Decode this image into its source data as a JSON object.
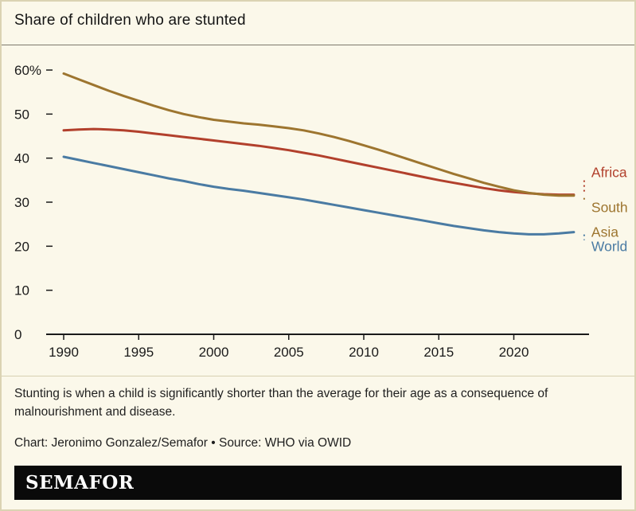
{
  "header": {
    "title": "Share of children who are stunted"
  },
  "chart_data": {
    "type": "line",
    "title": "Share of children who are stunted",
    "xlabel": "",
    "ylabel": "",
    "ylim": [
      0,
      62
    ],
    "grid": false,
    "legend_position": "right-end-labels",
    "x": [
      1990,
      1991,
      1992,
      1993,
      1994,
      1995,
      1996,
      1997,
      1998,
      1999,
      2000,
      2001,
      2002,
      2003,
      2004,
      2005,
      2006,
      2007,
      2008,
      2009,
      2010,
      2011,
      2012,
      2013,
      2014,
      2015,
      2016,
      2017,
      2018,
      2019,
      2020,
      2021,
      2022,
      2023,
      2024
    ],
    "series": [
      {
        "name": "Africa",
        "color": "#b2402c",
        "label_lines": [
          "Africa"
        ],
        "values": [
          46.3,
          46.5,
          46.6,
          46.5,
          46.3,
          46.0,
          45.6,
          45.2,
          44.8,
          44.4,
          44.0,
          43.6,
          43.2,
          42.8,
          42.3,
          41.8,
          41.2,
          40.6,
          39.9,
          39.2,
          38.5,
          37.8,
          37.1,
          36.4,
          35.7,
          35.0,
          34.4,
          33.8,
          33.2,
          32.7,
          32.3,
          32.0,
          31.8,
          31.7,
          31.7
        ]
      },
      {
        "name": "South Asia",
        "color": "#9d752f",
        "label_lines": [
          "South",
          "Asia"
        ],
        "values": [
          59.2,
          57.9,
          56.6,
          55.3,
          54.1,
          53.0,
          51.9,
          50.9,
          50.0,
          49.3,
          48.7,
          48.3,
          47.9,
          47.6,
          47.2,
          46.8,
          46.3,
          45.6,
          44.8,
          43.9,
          42.9,
          41.9,
          40.8,
          39.7,
          38.6,
          37.5,
          36.4,
          35.4,
          34.4,
          33.5,
          32.7,
          32.1,
          31.7,
          31.5,
          31.5
        ]
      },
      {
        "name": "World",
        "color": "#4a7ba3",
        "label_lines": [
          "World"
        ],
        "values": [
          40.3,
          39.6,
          38.9,
          38.2,
          37.5,
          36.8,
          36.1,
          35.4,
          34.8,
          34.1,
          33.5,
          33.0,
          32.6,
          32.1,
          31.6,
          31.1,
          30.6,
          30.0,
          29.4,
          28.8,
          28.2,
          27.6,
          27.0,
          26.4,
          25.8,
          25.2,
          24.6,
          24.1,
          23.6,
          23.2,
          22.9,
          22.7,
          22.7,
          22.9,
          23.2
        ]
      }
    ],
    "yticks": {
      "values": [
        60,
        50,
        40,
        30,
        20,
        10,
        0
      ],
      "labels": [
        "60%",
        "50",
        "40",
        "30",
        "20",
        "10",
        "0"
      ]
    },
    "xticks": {
      "values": [
        1990,
        1995,
        2000,
        2005,
        2010,
        2015,
        2020
      ],
      "labels": [
        "1990",
        "1995",
        "2000",
        "2005",
        "2010",
        "2015",
        "2020"
      ]
    }
  },
  "footer": {
    "note": "Stunting is when a child is significantly shorter than the average for their age as a consequence of malnourishment and disease.",
    "credit": "Chart: Jeronimo Gonzalez/Semafor • Source: WHO via OWID"
  },
  "logo": {
    "text": "SEMAFOR"
  }
}
